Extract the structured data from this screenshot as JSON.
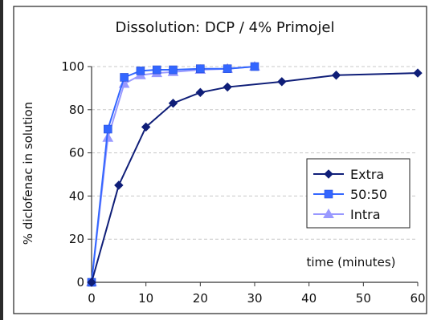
{
  "chart_data": {
    "type": "line",
    "title": "Dissolution: DCP / 4% Primojel",
    "xlabel": "",
    "ylabel": "% diclofenac in solution",
    "annotation": "time (minutes)",
    "xlim": [
      0,
      60
    ],
    "ylim": [
      0,
      100
    ],
    "xticks": [
      0,
      10,
      20,
      30,
      40,
      50,
      60
    ],
    "yticks": [
      0,
      20,
      40,
      60,
      80,
      100
    ],
    "grid": "horizontal dashed",
    "legend_position": "right",
    "series": [
      {
        "name": "Extra",
        "color": "#0f1e78",
        "marker": "diamond",
        "x": [
          0,
          5,
          10,
          15,
          20,
          25,
          35,
          45,
          60
        ],
        "y": [
          0,
          45,
          72,
          83,
          88,
          90.5,
          93,
          96,
          97
        ]
      },
      {
        "name": "50:50",
        "color": "#3366ff",
        "marker": "square",
        "x": [
          0,
          3,
          6,
          9,
          12,
          15,
          20,
          25,
          30
        ],
        "y": [
          0,
          71,
          95,
          98,
          98.5,
          98.5,
          99,
          99,
          100
        ]
      },
      {
        "name": "Intra",
        "color": "#9999ff",
        "marker": "triangle",
        "x": [
          0,
          3,
          6,
          9,
          12,
          15,
          20,
          25,
          30
        ],
        "y": [
          0,
          67,
          92,
          96,
          97,
          97.5,
          98.5,
          99,
          100
        ]
      }
    ]
  }
}
